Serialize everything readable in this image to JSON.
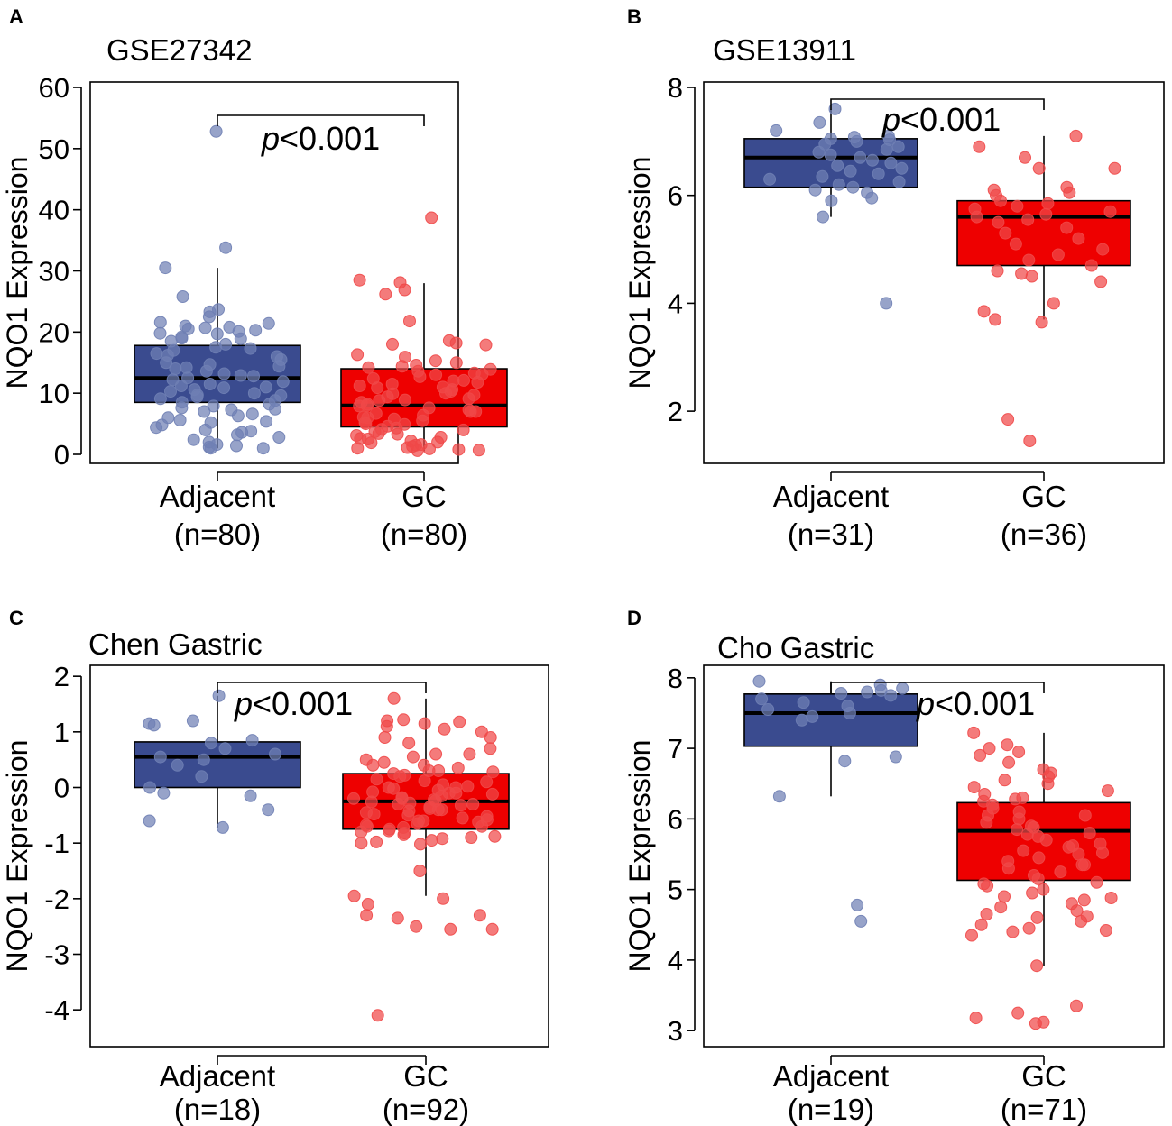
{
  "colors": {
    "adjacent_box": "#3a4b8f",
    "adjacent_point": "#6f7fb4",
    "gc_box": "#ee0000",
    "gc_point": "#f04848",
    "median": "#000000"
  },
  "chart_data": [
    {
      "panel": "A",
      "type": "box",
      "title": "GSE27342",
      "ylabel": "NQO1 Expression",
      "ylim": [
        0,
        60
      ],
      "yticks": [
        0,
        10,
        20,
        30,
        40,
        50,
        60
      ],
      "yticklabels": [
        "0",
        "10",
        "20",
        "30",
        "40",
        "50",
        "60"
      ],
      "pvalue": {
        "p": "p",
        "rest": "<0.001"
      },
      "groups": [
        {
          "name": "Adjacent",
          "n": "(n=80)",
          "q1": 8.5,
          "median": 12.5,
          "q3": 17.8,
          "whisker_low": 1,
          "whisker_high": 30.5,
          "points": [
            52.8,
            33.8,
            30.5,
            25.8,
            23.3,
            23.7,
            21.6,
            21.4,
            20.8,
            20.7,
            20.5,
            20.3,
            20.1,
            19.8,
            19.7,
            19.2,
            18.9,
            18.5,
            18,
            17.5,
            17,
            16.5,
            16,
            15.5,
            15,
            14.7,
            14.4,
            14,
            13.6,
            13.2,
            12.9,
            12.5,
            12.2,
            11.9,
            11.5,
            11.2,
            10.9,
            10.6,
            10.3,
            10,
            9.7,
            9.4,
            9.1,
            8.8,
            8.5,
            8.2,
            7.9,
            7.6,
            7.3,
            7,
            6.6,
            6.3,
            6,
            5.6,
            5.2,
            4.8,
            4.4,
            4,
            3.6,
            3.2,
            2.8,
            2.4,
            2,
            1.6,
            1.2,
            1,
            1,
            22.5,
            21,
            19,
            17.3,
            16.2,
            14.2,
            12.8,
            11,
            9.6,
            7.4,
            5.4,
            3.8,
            1.4
          ]
        },
        {
          "name": "GC",
          "n": "(n=80)",
          "q1": 4.5,
          "median": 8,
          "q3": 14,
          "whisker_low": 0.5,
          "whisker_high": 28,
          "points": [
            38.7,
            28.5,
            28.1,
            26.9,
            26.2,
            21.8,
            18.6,
            18.2,
            18,
            17.9,
            16.3,
            15.9,
            15.3,
            14.6,
            14.2,
            13.9,
            13.6,
            13.3,
            13,
            12.7,
            12.4,
            12.1,
            11.8,
            11.5,
            11.2,
            10.9,
            10.6,
            10.3,
            10,
            9.7,
            9.4,
            9.1,
            8.8,
            8.5,
            8.2,
            7.9,
            7.6,
            7.3,
            7,
            6.7,
            6.4,
            6.1,
            5.8,
            5.5,
            5.2,
            4.9,
            4.6,
            4.3,
            4,
            3.7,
            3.4,
            3.1,
            2.8,
            2.5,
            2.2,
            1.9,
            1.6,
            1.3,
            1,
            0.8,
            0.6,
            15,
            14.4,
            13.1,
            12,
            11,
            9.9,
            8.9,
            8,
            7,
            6,
            5,
            4.1,
            3.3,
            2.6,
            2,
            1.5,
            1.1,
            0.9,
            0.7
          ]
        }
      ]
    },
    {
      "panel": "B",
      "type": "box",
      "title": "GSE13911",
      "ylabel": "NQO1 Expression",
      "ylim": [
        1.2,
        8
      ],
      "yticks": [
        2,
        4,
        6,
        8
      ],
      "yticklabels": [
        "2",
        "4",
        "6",
        "8"
      ],
      "pvalue": {
        "p": "p",
        "rest": "<0.001"
      },
      "groups": [
        {
          "name": "Adjacent",
          "n": "(n=31)",
          "q1": 6.15,
          "median": 6.7,
          "q3": 7.05,
          "whisker_low": 5.6,
          "whisker_high": 7.6,
          "points": [
            7.6,
            7.35,
            7.2,
            7.1,
            7.08,
            7.05,
            7.03,
            7,
            6.95,
            6.9,
            6.85,
            6.8,
            6.75,
            6.7,
            6.65,
            6.6,
            6.55,
            6.5,
            6.45,
            6.4,
            6.35,
            6.3,
            6.25,
            6.2,
            6.15,
            6.1,
            6.05,
            5.95,
            5.9,
            5.6,
            4
          ]
        },
        {
          "name": "GC",
          "n": "(n=36)",
          "q1": 4.7,
          "median": 5.6,
          "q3": 5.9,
          "whisker_low": 3.7,
          "whisker_high": 7.1,
          "points": [
            7.1,
            6.9,
            6.7,
            6.5,
            6.5,
            6.15,
            6.1,
            6.05,
            6,
            5.9,
            5.85,
            5.8,
            5.75,
            5.7,
            5.65,
            5.6,
            5.55,
            5.5,
            5.4,
            5.3,
            5.2,
            5.1,
            5,
            4.9,
            4.8,
            4.7,
            4.6,
            4.55,
            4.5,
            4.4,
            4,
            3.85,
            3.7,
            3.65,
            1.85,
            1.45
          ]
        }
      ]
    },
    {
      "panel": "C",
      "type": "box",
      "title": "Chen Gastric",
      "ylabel": "NQO1 Expression",
      "ylim": [
        -4.5,
        2.1
      ],
      "yticks": [
        -4,
        -3,
        -2,
        -1,
        0,
        1,
        2
      ],
      "yticklabels": [
        "-4",
        "-3",
        "-2",
        "-1",
        "0",
        "1",
        "2"
      ],
      "pvalue": {
        "p": "p",
        "rest": "<0.001"
      },
      "groups": [
        {
          "name": "Adjacent",
          "n": "(n=18)",
          "q1": 0,
          "median": 0.55,
          "q3": 0.82,
          "whisker_low": -0.72,
          "whisker_high": 1.65,
          "points": [
            1.65,
            1.2,
            1.15,
            1.12,
            0.85,
            0.8,
            0.7,
            0.6,
            0.55,
            0.5,
            0.4,
            0.2,
            0,
            -0.1,
            -0.15,
            -0.4,
            -0.6,
            -0.72
          ]
        },
        {
          "name": "GC",
          "n": "(n=92)",
          "q1": -0.75,
          "median": -0.25,
          "q3": 0.25,
          "whisker_low": -1.95,
          "whisker_high": 1.6,
          "points": [
            1.6,
            1.22,
            1.2,
            1.18,
            1.15,
            1.1,
            1.05,
            1,
            0.9,
            0.8,
            0.7,
            0.6,
            0.55,
            0.5,
            0.45,
            0.4,
            0.35,
            0.3,
            0.28,
            0.25,
            0.22,
            0.2,
            0.15,
            0.1,
            0.05,
            0.02,
            0,
            -0.02,
            -0.05,
            -0.08,
            -0.1,
            -0.12,
            -0.15,
            -0.18,
            -0.2,
            -0.22,
            -0.24,
            -0.26,
            -0.28,
            -0.3,
            -0.32,
            -0.35,
            -0.38,
            -0.4,
            -0.42,
            -0.45,
            -0.48,
            -0.5,
            -0.52,
            -0.55,
            -0.58,
            -0.6,
            -0.62,
            -0.65,
            -0.68,
            -0.7,
            -0.72,
            -0.75,
            -0.78,
            -0.8,
            -0.82,
            -0.85,
            -0.88,
            -0.9,
            -0.92,
            -0.95,
            -1,
            -1.02,
            -0.98,
            -0.6,
            -0.3,
            0,
            0.3,
            0.6,
            0.9,
            -0.4,
            -0.1,
            0.12,
            -0.7,
            -0.2,
            0.4,
            -1.5,
            -1.95,
            -2,
            -2.1,
            -2.3,
            -2.35,
            -2.5,
            -2.55,
            -2.55,
            -2.3,
            -4.1
          ]
        }
      ]
    },
    {
      "panel": "D",
      "type": "box",
      "title": "Cho Gastric",
      "ylabel": "NQO1 Expression",
      "ylim": [
        2.9,
        8.1
      ],
      "yticks": [
        3,
        4,
        5,
        6,
        7,
        8
      ],
      "yticklabels": [
        "3",
        "4",
        "5",
        "6",
        "7",
        "8"
      ],
      "pvalue": {
        "p": "p",
        "rest": "<0.001"
      },
      "groups": [
        {
          "name": "Adjacent",
          "n": "(n=19)",
          "q1": 7.03,
          "median": 7.5,
          "q3": 7.77,
          "whisker_low": 6.32,
          "whisker_high": 7.95,
          "points": [
            7.95,
            7.9,
            7.85,
            7.82,
            7.8,
            7.78,
            7.75,
            7.7,
            7.65,
            7.6,
            7.55,
            7.5,
            7.45,
            7.4,
            6.88,
            6.82,
            6.32,
            4.78,
            4.55
          ]
        },
        {
          "name": "GC",
          "n": "(n=71)",
          "q1": 5.13,
          "median": 5.83,
          "q3": 6.23,
          "whisker_low": 3.92,
          "whisker_high": 7.22,
          "points": [
            7.22,
            7.05,
            7,
            6.95,
            6.9,
            6.8,
            6.7,
            6.6,
            6.5,
            6.4,
            6.35,
            6.3,
            6.25,
            6.2,
            6.15,
            6.1,
            6.05,
            6,
            5.95,
            5.9,
            5.85,
            5.8,
            5.75,
            5.7,
            5.65,
            5.6,
            5.55,
            5.5,
            5.45,
            5.4,
            5.35,
            5.3,
            5.25,
            5.2,
            5.15,
            5.1,
            5.05,
            5,
            4.95,
            4.9,
            4.85,
            4.8,
            4.75,
            4.7,
            4.65,
            4.6,
            4.55,
            4.5,
            4.45,
            4.4,
            4.35,
            3.92,
            3.35,
            3.25,
            3.18,
            3.12,
            3.1,
            6.65,
            6.45,
            6.05,
            5.88,
            5.62,
            5.35,
            5.08,
            4.88,
            4.62,
            4.42,
            6.55,
            6.28,
            5.78,
            5.52
          ]
        }
      ]
    }
  ]
}
